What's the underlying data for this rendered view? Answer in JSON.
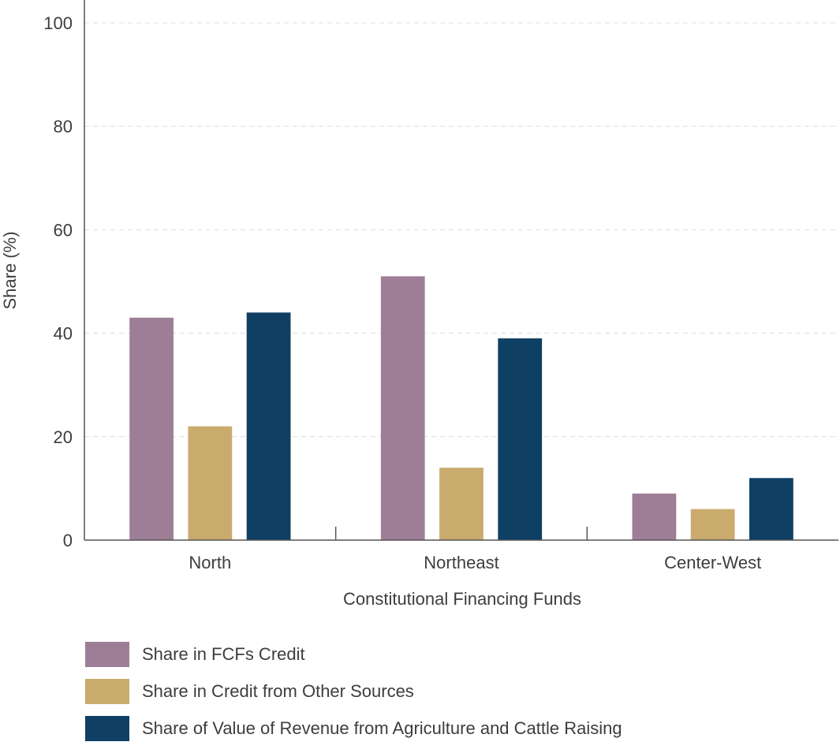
{
  "chart_data": {
    "type": "bar",
    "categories": [
      "North",
      "Northeast",
      "Center-West"
    ],
    "series": [
      {
        "name": "Share in FCFs Credit",
        "values": [
          43,
          51,
          9
        ],
        "color": "#9e7e96"
      },
      {
        "name": "Share in Credit from Other Sources",
        "values": [
          22,
          14,
          6
        ],
        "color": "#c9ab6e"
      },
      {
        "name": "Share of Value of Revenue from Agriculture and Cattle Raising",
        "values": [
          44,
          39,
          12
        ],
        "color": "#0f3f63"
      }
    ],
    "title": "",
    "xlabel": "Constitutional Financing Funds",
    "ylabel": "Share (%)",
    "ylim": [
      0,
      100
    ],
    "yticks": [
      0,
      20,
      40,
      60,
      80,
      100
    ],
    "grid": true,
    "legend_position": "bottom"
  }
}
